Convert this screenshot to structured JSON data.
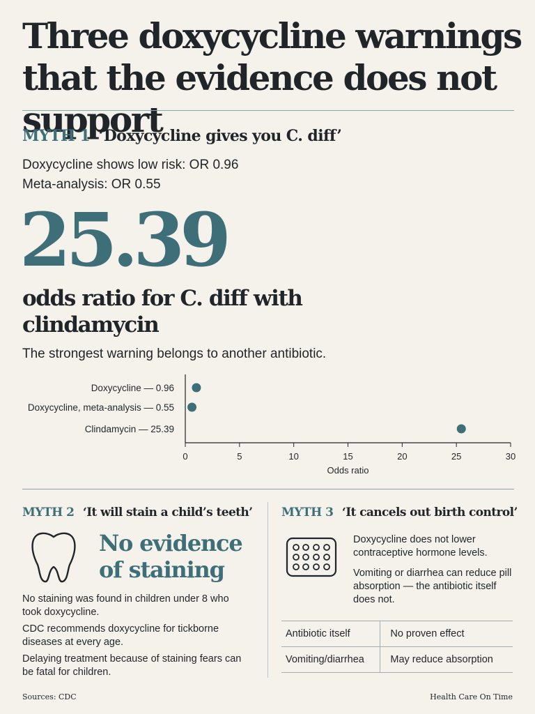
{
  "headline": "Three doxycycline warnings that the evidence does not support",
  "myth1": {
    "tag": "MYTH 1",
    "claim": "‘Doxycycline gives you C. diff’",
    "stat_line_1": "Doxycycline shows low risk: OR 0.96",
    "stat_line_2": "Meta-analysis: OR 0.55",
    "big_number": "25.39",
    "big_caption": "odds ratio for C. diff with clindamycin",
    "subtext": "The strongest warning belongs to another antibiotic."
  },
  "chart_data": {
    "type": "scatter",
    "categories": [
      "Doxycycline — 0.96",
      "Doxycycline, meta-analysis — 0.55",
      "Clindamycin — 25.39"
    ],
    "values": [
      0.96,
      0.55,
      25.39
    ],
    "xlim": [
      0,
      30
    ],
    "xticks": [
      0,
      5,
      10,
      15,
      20,
      25,
      30
    ],
    "xlabel": "Odds ratio",
    "grid": false,
    "color": "#3e6f79"
  },
  "myth2": {
    "tag": "MYTH 2",
    "claim": "‘It will stain a child’s teeth’",
    "icon": "tooth-icon",
    "headline": "No evidence of staining",
    "paragraphs": [
      "No staining was found in children under 8 who took doxycycline.",
      "CDC recommends doxycycline for tickborne diseases at every age.",
      "Delaying treatment because of staining fears can be fatal for children."
    ]
  },
  "myth3": {
    "tag": "MYTH 3",
    "claim": "‘It cancels out birth control’",
    "icon": "pill-pack-icon",
    "paragraphs": [
      "Doxycycline does not lower contraceptive hormone levels.",
      "Vomiting or diarrhea can reduce pill absorption — the antibiotic itself does not."
    ],
    "table": [
      [
        "Antibiotic itself",
        "No proven effect"
      ],
      [
        "Vomiting/diarrhea",
        "May reduce absorption"
      ]
    ]
  },
  "footer": {
    "sources": "Sources: CDC",
    "brand": "Health Care On Time"
  }
}
